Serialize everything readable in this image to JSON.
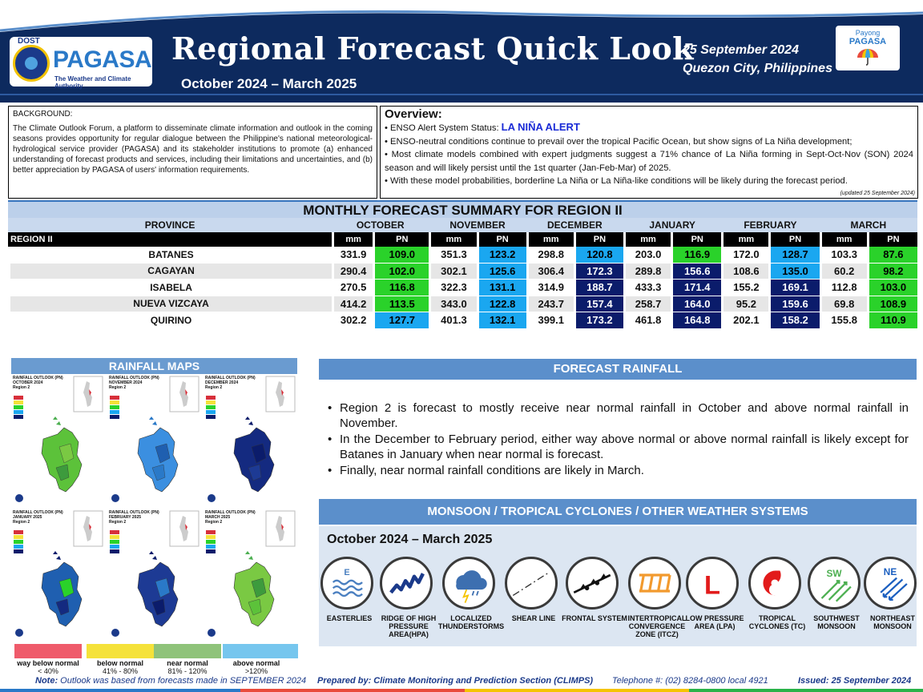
{
  "header": {
    "dost": "DOST",
    "agency": "PAGASA",
    "tagline": "The Weather and Climate Authority",
    "title": "Regional Forecast Quick Look",
    "period": "October 2024 – March 2025",
    "date": "25 September 2024",
    "place": "Quezon City, Philippines",
    "payong_line1": "Payong",
    "payong_line2": "PAGASA"
  },
  "background": {
    "heading": "BACKGROUND:",
    "text": "The Climate Outlook Forum, a platform to disseminate climate information and outlook in the coming seasons provides opportunity for regular dialogue between the Philippine's national meteorological-hydrological service provider (PAGASA) and its stakeholder institutions to promote (a) enhanced understanding of forecast products and services, including their limitations and uncertainties, and (b) better appreciation by PAGASA of users' information requirements."
  },
  "overview": {
    "heading": "Overview:",
    "status_label": "• ENSO Alert System Status: ",
    "status_value": "LA NIÑA ALERT",
    "bullet1": "• ENSO-neutral conditions continue to prevail over the tropical Pacific Ocean, but show signs of La Niña development;",
    "bullet2": "• Most climate models combined with expert judgments suggest a 71% chance of La Niña forming in Sept-Oct-Nov (SON) 2024 season and will likely persist until the 1st quarter (Jan-Feb-Mar) of 2025.",
    "bullet3": "• With these model probabilities, borderline La Niña or La Niña-like conditions will be likely during the forecast period.",
    "updated": "(updated 25 September 2024)"
  },
  "table": {
    "title": "MONTHLY FORECAST SUMMARY FOR REGION II",
    "province_header": "PROVINCE",
    "region": "REGION II",
    "months": [
      "OCTOBER",
      "NOVEMBER",
      "DECEMBER",
      "JANUARY",
      "FEBRUARY",
      "MARCH"
    ],
    "unit_mm": "mm",
    "unit_pn": "PN",
    "rows": [
      {
        "name": "BATANES",
        "cells": [
          [
            "331.9",
            "109.0"
          ],
          [
            "351.3",
            "123.2"
          ],
          [
            "298.8",
            "120.8"
          ],
          [
            "203.0",
            "116.9"
          ],
          [
            "172.0",
            "128.7"
          ],
          [
            "103.3",
            "87.6"
          ]
        ]
      },
      {
        "name": "CAGAYAN",
        "cells": [
          [
            "290.4",
            "102.0"
          ],
          [
            "302.1",
            "125.6"
          ],
          [
            "306.4",
            "172.3"
          ],
          [
            "289.8",
            "156.6"
          ],
          [
            "108.6",
            "135.0"
          ],
          [
            "60.2",
            "98.2"
          ]
        ]
      },
      {
        "name": "ISABELA",
        "cells": [
          [
            "270.5",
            "116.8"
          ],
          [
            "322.3",
            "131.1"
          ],
          [
            "314.9",
            "188.7"
          ],
          [
            "433.3",
            "171.4"
          ],
          [
            "155.2",
            "169.1"
          ],
          [
            "112.8",
            "103.0"
          ]
        ]
      },
      {
        "name": "NUEVA VIZCAYA",
        "cells": [
          [
            "414.2",
            "113.5"
          ],
          [
            "343.0",
            "122.8"
          ],
          [
            "243.7",
            "157.4"
          ],
          [
            "258.7",
            "164.0"
          ],
          [
            "95.2",
            "159.6"
          ],
          [
            "69.8",
            "108.9"
          ]
        ]
      },
      {
        "name": "QUIRINO",
        "cells": [
          [
            "302.2",
            "127.7"
          ],
          [
            "401.3",
            "132.1"
          ],
          [
            "399.1",
            "173.2"
          ],
          [
            "461.8",
            "164.8"
          ],
          [
            "202.1",
            "158.2"
          ],
          [
            "155.8",
            "110.9"
          ]
        ]
      }
    ]
  },
  "rainfall_maps": {
    "heading": "RAINFALL MAPS",
    "maps": [
      {
        "title": "RAINFALL OUTLOOK (PN)",
        "month": "OCTOBER 2024",
        "region": "Region 2"
      },
      {
        "title": "RAINFALL OUTLOOK (PN)",
        "month": "NOVEMBER 2024",
        "region": "Region 2"
      },
      {
        "title": "RAINFALL OUTLOOK (PN)",
        "month": "DECEMBER 2024",
        "region": "Region 2"
      },
      {
        "title": "RAINFALL OUTLOOK (PN)",
        "month": "JANUARY 2025",
        "region": "Region 2"
      },
      {
        "title": "RAINFALL OUTLOOK (PN)",
        "month": "FEBRUARY 2025",
        "region": "Region 2"
      },
      {
        "title": "RAINFALL OUTLOOK (PN)",
        "month": "MARCH 2025",
        "region": "Region 2"
      }
    ],
    "legend": [
      {
        "label1": "way below normal",
        "label2": "< 40%",
        "color": "#ef5b6b"
      },
      {
        "label1": "below normal",
        "label2": "41% - 80%",
        "color": "#f5e23a"
      },
      {
        "label1": "near normal",
        "label2": "81% - 120%",
        "color": "#8fc37a"
      },
      {
        "label1": "above normal",
        "label2": ">120%",
        "color": "#76c6ee"
      }
    ]
  },
  "forecast": {
    "heading": "FORECAST RAINFALL",
    "bullets": [
      "Region 2 is forecast to mostly receive near normal rainfall in October and above normal rainfall in November.",
      "In the December to February period, either way above normal or above normal rainfall is likely except for Batanes in January when near normal is forecast.",
      "Finally, near normal rainfall conditions are likely in March."
    ]
  },
  "systems": {
    "heading": "MONSOON / TROPICAL CYCLONES / OTHER WEATHER SYSTEMS",
    "period": "October 2024 – March 2025",
    "items": [
      {
        "label": "EASTERLIES",
        "icon": "easterlies-icon",
        "glyph": "E"
      },
      {
        "label": "RIDGE OF HIGH PRESSURE AREA(HPA)",
        "icon": "ridge-icon",
        "glyph": ""
      },
      {
        "label": "LOCALIZED THUNDERSTORMS",
        "icon": "thunderstorm-icon",
        "glyph": ""
      },
      {
        "label": "SHEAR LINE",
        "icon": "shear-line-icon",
        "glyph": ""
      },
      {
        "label": "FRONTAL SYSTEM",
        "icon": "frontal-system-icon",
        "glyph": ""
      },
      {
        "label": "INTERTROPICAL CONVERGENCE ZONE (ITCZ)",
        "icon": "itcz-icon",
        "glyph": ""
      },
      {
        "label": "LOW PRESSURE AREA (LPA)",
        "icon": "lpa-icon",
        "glyph": "L"
      },
      {
        "label": "TROPICAL CYCLONES (TC)",
        "icon": "tropical-cyclone-icon",
        "glyph": ""
      },
      {
        "label": "SOUTHWEST MONSOON",
        "icon": "southwest-monsoon-icon",
        "glyph": "SW"
      },
      {
        "label": "NORTHEAST MONSOON",
        "icon": "northeast-monsoon-icon",
        "glyph": "NE"
      }
    ]
  },
  "footer": {
    "note_label": "Note:",
    "note": "Outlook was based from forecasts made in SEPTEMBER 2024",
    "prepared": "Prepared by: Climate Monitoring and Prediction Section (CLIMPS)",
    "telephone": "Telephone #: (02) 8284-0800 local 4921",
    "issued": "Issued: 25 September 2024"
  },
  "colors": {
    "header_navy": "#0d2a5e",
    "near_normal": "#2ad22a",
    "above_normal": "#1aa7f0",
    "way_above_normal": "#0b1c6b",
    "alert_blue": "#1a2bd6"
  }
}
